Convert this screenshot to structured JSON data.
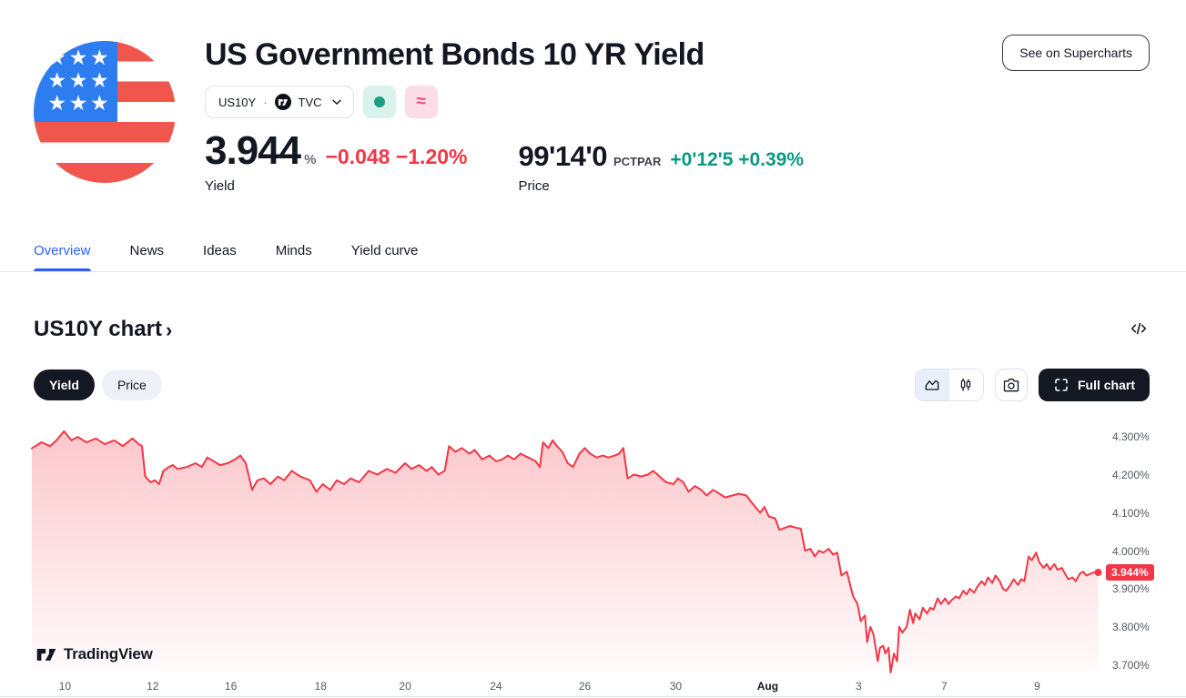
{
  "colors": {
    "red": "#f23645",
    "green": "#089981",
    "blue": "#2962ff",
    "dark": "#131722"
  },
  "header": {
    "title": "US Government Bonds 10 YR Yield",
    "supercharts_button": "See on Supercharts",
    "symbol": {
      "ticker": "US10Y",
      "separator": "·",
      "exchange": "TVC"
    },
    "status_chips": {
      "market_dot": "",
      "delayed_symbol": "≈"
    },
    "yield_quote": {
      "value": "3.944",
      "unit": "%",
      "change": "−0.048 −1.20%",
      "label": "Yield"
    },
    "price_quote": {
      "value": "99'14'0",
      "unit": "PCTPAR",
      "change": "+0'12'5 +0.39%",
      "label": "Price"
    }
  },
  "tabs": [
    {
      "label": "Overview",
      "active": true
    },
    {
      "label": "News",
      "active": false
    },
    {
      "label": "Ideas",
      "active": false
    },
    {
      "label": "Minds",
      "active": false
    },
    {
      "label": "Yield curve",
      "active": false
    }
  ],
  "chart_section": {
    "heading": "US10Y chart",
    "heading_chevron": "›",
    "toggle": {
      "yield_label": "Yield",
      "price_label": "Price"
    },
    "full_chart_button": "Full chart",
    "watermark": "TradingView"
  },
  "chart_data": {
    "type": "area",
    "series_name": "US10Y yield %",
    "line_color": "#f23645",
    "fill_top": "rgba(242,54,69,0.28)",
    "fill_bottom": "rgba(242,54,69,0.02)",
    "ylim": [
      3.681,
      4.341
    ],
    "last_value": 3.944,
    "last_label": "3.944%",
    "y_ticks": [
      {
        "value": 4.3,
        "label": "4.300%"
      },
      {
        "value": 4.2,
        "label": "4.200%"
      },
      {
        "value": 4.1,
        "label": "4.100%"
      },
      {
        "value": 4.0,
        "label": "4.000%"
      },
      {
        "value": 3.9,
        "label": "3.900%"
      },
      {
        "value": 3.8,
        "label": "3.800%"
      },
      {
        "value": 3.7,
        "label": "3.700%"
      }
    ],
    "x_ticks": [
      {
        "label": "10",
        "f": 0.031
      },
      {
        "label": "12",
        "f": 0.113
      },
      {
        "label": "16",
        "f": 0.186
      },
      {
        "label": "18",
        "f": 0.27
      },
      {
        "label": "20",
        "f": 0.349
      },
      {
        "label": "24",
        "f": 0.434
      },
      {
        "label": "26",
        "f": 0.517
      },
      {
        "label": "30",
        "f": 0.602
      },
      {
        "label": "Aug",
        "f": 0.688,
        "strong": true
      },
      {
        "label": "3",
        "f": 0.773
      },
      {
        "label": "7",
        "f": 0.853
      },
      {
        "label": "9",
        "f": 0.94
      }
    ],
    "points": [
      [
        0.0,
        4.27
      ],
      [
        0.009,
        4.286
      ],
      [
        0.017,
        4.276
      ],
      [
        0.023,
        4.291
      ],
      [
        0.03,
        4.315
      ],
      [
        0.037,
        4.291
      ],
      [
        0.043,
        4.3
      ],
      [
        0.051,
        4.286
      ],
      [
        0.06,
        4.296
      ],
      [
        0.068,
        4.281
      ],
      [
        0.077,
        4.291
      ],
      [
        0.085,
        4.276
      ],
      [
        0.094,
        4.296
      ],
      [
        0.1,
        4.281
      ],
      [
        0.103,
        4.276
      ],
      [
        0.106,
        4.196
      ],
      [
        0.111,
        4.181
      ],
      [
        0.115,
        4.186
      ],
      [
        0.119,
        4.176
      ],
      [
        0.123,
        4.211
      ],
      [
        0.128,
        4.221
      ],
      [
        0.132,
        4.226
      ],
      [
        0.136,
        4.216
      ],
      [
        0.145,
        4.221
      ],
      [
        0.153,
        4.231
      ],
      [
        0.159,
        4.221
      ],
      [
        0.164,
        4.246
      ],
      [
        0.17,
        4.236
      ],
      [
        0.176,
        4.226
      ],
      [
        0.183,
        4.231
      ],
      [
        0.19,
        4.241
      ],
      [
        0.195,
        4.251
      ],
      [
        0.2,
        4.231
      ],
      [
        0.206,
        4.161
      ],
      [
        0.211,
        4.186
      ],
      [
        0.217,
        4.191
      ],
      [
        0.223,
        4.176
      ],
      [
        0.23,
        4.196
      ],
      [
        0.236,
        4.186
      ],
      [
        0.243,
        4.211
      ],
      [
        0.251,
        4.196
      ],
      [
        0.26,
        4.186
      ],
      [
        0.266,
        4.156
      ],
      [
        0.272,
        4.176
      ],
      [
        0.279,
        4.161
      ],
      [
        0.285,
        4.186
      ],
      [
        0.292,
        4.176
      ],
      [
        0.298,
        4.191
      ],
      [
        0.306,
        4.181
      ],
      [
        0.315,
        4.211
      ],
      [
        0.323,
        4.201
      ],
      [
        0.332,
        4.216
      ],
      [
        0.34,
        4.206
      ],
      [
        0.349,
        4.231
      ],
      [
        0.355,
        4.216
      ],
      [
        0.362,
        4.226
      ],
      [
        0.369,
        4.211
      ],
      [
        0.374,
        4.221
      ],
      [
        0.38,
        4.201
      ],
      [
        0.386,
        4.211
      ],
      [
        0.39,
        4.276
      ],
      [
        0.396,
        4.261
      ],
      [
        0.402,
        4.271
      ],
      [
        0.409,
        4.256
      ],
      [
        0.414,
        4.266
      ],
      [
        0.421,
        4.241
      ],
      [
        0.428,
        4.251
      ],
      [
        0.434,
        4.236
      ],
      [
        0.44,
        4.241
      ],
      [
        0.445,
        4.251
      ],
      [
        0.451,
        4.241
      ],
      [
        0.457,
        4.256
      ],
      [
        0.464,
        4.246
      ],
      [
        0.471,
        4.236
      ],
      [
        0.475,
        4.221
      ],
      [
        0.478,
        4.286
      ],
      [
        0.483,
        4.271
      ],
      [
        0.487,
        4.291
      ],
      [
        0.491,
        4.276
      ],
      [
        0.496,
        4.261
      ],
      [
        0.501,
        4.231
      ],
      [
        0.506,
        4.221
      ],
      [
        0.512,
        4.256
      ],
      [
        0.517,
        4.271
      ],
      [
        0.522,
        4.256
      ],
      [
        0.528,
        4.246
      ],
      [
        0.534,
        4.251
      ],
      [
        0.539,
        4.246
      ],
      [
        0.545,
        4.251
      ],
      [
        0.549,
        4.256
      ],
      [
        0.553,
        4.271
      ],
      [
        0.557,
        4.191
      ],
      [
        0.563,
        4.201
      ],
      [
        0.57,
        4.196
      ],
      [
        0.576,
        4.201
      ],
      [
        0.581,
        4.211
      ],
      [
        0.587,
        4.196
      ],
      [
        0.593,
        4.181
      ],
      [
        0.6,
        4.176
      ],
      [
        0.604,
        4.191
      ],
      [
        0.609,
        4.181
      ],
      [
        0.614,
        4.156
      ],
      [
        0.62,
        4.171
      ],
      [
        0.626,
        4.161
      ],
      [
        0.631,
        4.146
      ],
      [
        0.637,
        4.161
      ],
      [
        0.643,
        4.151
      ],
      [
        0.648,
        4.141
      ],
      [
        0.655,
        4.146
      ],
      [
        0.661,
        4.151
      ],
      [
        0.668,
        4.146
      ],
      [
        0.675,
        4.121
      ],
      [
        0.681,
        4.101
      ],
      [
        0.685,
        4.116
      ],
      [
        0.689,
        4.091
      ],
      [
        0.695,
        4.086
      ],
      [
        0.699,
        4.056
      ],
      [
        0.704,
        4.061
      ],
      [
        0.709,
        4.066
      ],
      [
        0.715,
        4.061
      ],
      [
        0.719,
        4.059
      ],
      [
        0.723,
        4.001
      ],
      [
        0.728,
        4.006
      ],
      [
        0.732,
        3.986
      ],
      [
        0.736,
        4.001
      ],
      [
        0.74,
        3.996
      ],
      [
        0.745,
        4.006
      ],
      [
        0.749,
        3.991
      ],
      [
        0.753,
        3.996
      ],
      [
        0.757,
        3.936
      ],
      [
        0.762,
        3.946
      ],
      [
        0.766,
        3.901
      ],
      [
        0.768,
        3.881
      ],
      [
        0.772,
        3.861
      ],
      [
        0.775,
        3.816
      ],
      [
        0.779,
        3.831
      ],
      [
        0.781,
        3.761
      ],
      [
        0.784,
        3.801
      ],
      [
        0.787,
        3.781
      ],
      [
        0.791,
        3.711
      ],
      [
        0.793,
        3.746
      ],
      [
        0.796,
        3.751
      ],
      [
        0.798,
        3.731
      ],
      [
        0.801,
        3.746
      ],
      [
        0.803,
        3.681
      ],
      [
        0.806,
        3.731
      ],
      [
        0.809,
        3.711
      ],
      [
        0.811,
        3.801
      ],
      [
        0.814,
        3.786
      ],
      [
        0.818,
        3.801
      ],
      [
        0.821,
        3.846
      ],
      [
        0.824,
        3.811
      ],
      [
        0.826,
        3.836
      ],
      [
        0.83,
        3.821
      ],
      [
        0.833,
        3.851
      ],
      [
        0.837,
        3.836
      ],
      [
        0.84,
        3.851
      ],
      [
        0.843,
        3.846
      ],
      [
        0.847,
        3.876
      ],
      [
        0.85,
        3.861
      ],
      [
        0.854,
        3.876
      ],
      [
        0.857,
        3.861
      ],
      [
        0.86,
        3.871
      ],
      [
        0.864,
        3.881
      ],
      [
        0.867,
        3.876
      ],
      [
        0.871,
        3.896
      ],
      [
        0.874,
        3.886
      ],
      [
        0.877,
        3.901
      ],
      [
        0.881,
        3.891
      ],
      [
        0.884,
        3.906
      ],
      [
        0.888,
        3.921
      ],
      [
        0.891,
        3.911
      ],
      [
        0.894,
        3.931
      ],
      [
        0.898,
        3.916
      ],
      [
        0.901,
        3.936
      ],
      [
        0.905,
        3.921
      ],
      [
        0.908,
        3.901
      ],
      [
        0.911,
        3.896
      ],
      [
        0.915,
        3.911
      ],
      [
        0.918,
        3.926
      ],
      [
        0.922,
        3.911
      ],
      [
        0.925,
        3.926
      ],
      [
        0.928,
        3.921
      ],
      [
        0.932,
        3.986
      ],
      [
        0.935,
        3.976
      ],
      [
        0.939,
        3.996
      ],
      [
        0.942,
        3.971
      ],
      [
        0.946,
        3.956
      ],
      [
        0.949,
        3.966
      ],
      [
        0.952,
        3.951
      ],
      [
        0.956,
        3.966
      ],
      [
        0.959,
        3.951
      ],
      [
        0.963,
        3.956
      ],
      [
        0.966,
        3.941
      ],
      [
        0.969,
        3.926
      ],
      [
        0.973,
        3.931
      ],
      [
        0.976,
        3.921
      ],
      [
        0.98,
        3.941
      ],
      [
        0.983,
        3.946
      ],
      [
        0.986,
        3.936
      ],
      [
        0.99,
        3.941
      ],
      [
        0.993,
        3.944
      ],
      [
        0.997,
        3.944
      ]
    ]
  }
}
